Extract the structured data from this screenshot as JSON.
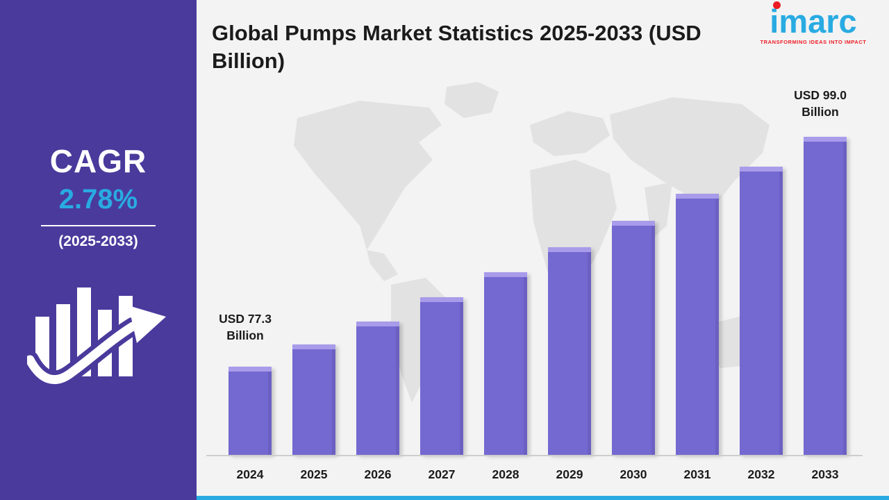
{
  "page": {
    "title": "Global Pumps Market Statistics 2025-2033 (USD Billion)"
  },
  "sidebar": {
    "cagr_label": "CAGR",
    "cagr_value": "2.78%",
    "cagr_period": "(2025-2033)"
  },
  "logo": {
    "wordmark": "imarc",
    "tagline": "TRANSFORMING IDEAS INTO IMPACT"
  },
  "chart_data": {
    "type": "bar",
    "title": "Global Pumps Market Statistics 2025-2033 (USD Billion)",
    "unit": "USD Billion",
    "categories": [
      "2024",
      "2025",
      "2026",
      "2027",
      "2028",
      "2029",
      "2030",
      "2031",
      "2032",
      "2033"
    ],
    "values": [
      77.3,
      79.4,
      81.6,
      83.9,
      86.2,
      88.6,
      91.1,
      93.6,
      96.2,
      99.0
    ],
    "value_labels": {
      "first": "USD 77.3 Billion",
      "last": "USD 99.0 Billion"
    },
    "ylim": [
      69,
      99
    ],
    "grid": false,
    "legend": false,
    "bar_color": "#7468d1",
    "bar_top_color": "#a89bea"
  },
  "colors": {
    "sidebar_bg": "#4a3a9c",
    "accent_cyan": "#29abe2",
    "logo_red": "#ed1c24",
    "text_dark": "#1b1b1b",
    "map_gray": "#e2e2e2",
    "main_bg": "#f3f3f3"
  }
}
